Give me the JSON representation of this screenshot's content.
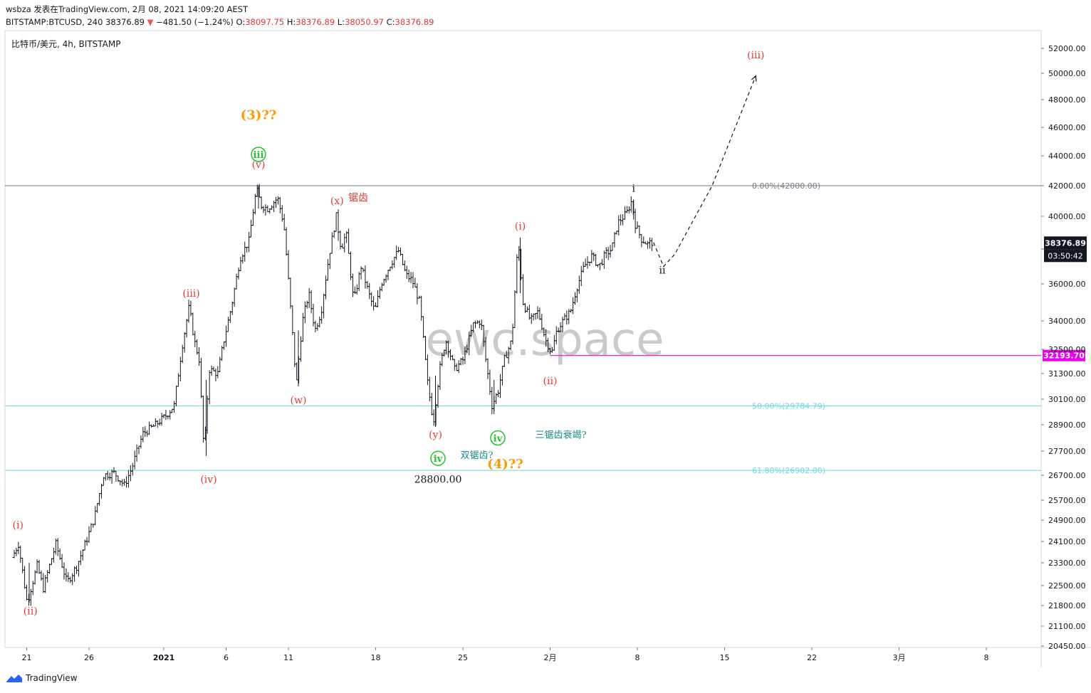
{
  "header": {
    "line1": "wsbza 发表在TradingView.com, 2月 08, 2021 14:09:20 AEST",
    "symbol_part": "BITSTAMP:BTCUSD, 240 38376.89",
    "change_arrow": "▼",
    "change": "−481.50 (−1.24%)",
    "o_label": "O:",
    "o_value": "38097.75",
    "h_label": "H:",
    "h_value": "38376.89",
    "l_label": "L:",
    "l_value": "38050.97",
    "c_label": "C:",
    "c_value": "38376.89"
  },
  "pane_title": "比特币/美元, 4h, BITSTAMP",
  "watermark": "ewc.space",
  "footer": {
    "brand": "TradingView"
  },
  "colors": {
    "candle": "#131722",
    "wave_red": "#e53935",
    "wave_orange": "#ff9800",
    "wave_green": "#22c32e",
    "fib_gray": "#787b86",
    "fib_cyan": "#6fd6e6",
    "magenta": "#ee00ee",
    "price_badge": "#131722"
  },
  "chart_data": {
    "type": "candlestick",
    "symbol": "BITSTAMP:BTCUSD",
    "interval": "4h",
    "y_ticks": [
      "52000.00",
      "50000.00",
      "48000.00",
      "46000.00",
      "44000.00",
      "42000.00",
      "40000.00",
      "38000.00",
      "36000.00",
      "34000.00",
      "32500.00",
      "31300.00",
      "30100.00",
      "28900.00",
      "27700.00",
      "26700.00",
      "25700.00",
      "24900.00",
      "24100.00",
      "23300.00",
      "22500.00",
      "21800.00",
      "21100.00",
      "20450.00"
    ],
    "x_ticks": [
      {
        "label": "21",
        "day": 21
      },
      {
        "label": "26",
        "day": 26
      },
      {
        "label": "2021",
        "day": 32
      },
      {
        "label": "6",
        "day": 37
      },
      {
        "label": "11",
        "day": 42
      },
      {
        "label": "18",
        "day": 49
      },
      {
        "label": "25",
        "day": 56
      },
      {
        "label": "2月",
        "day": 63
      },
      {
        "label": "8",
        "day": 70
      },
      {
        "label": "15",
        "day": 77
      },
      {
        "label": "22",
        "day": 84
      },
      {
        "label": "3月",
        "day": 91
      },
      {
        "label": "8",
        "day": 98
      }
    ],
    "path_points": [
      [
        20.0,
        23500
      ],
      [
        20.5,
        24000
      ],
      [
        21.2,
        21900
      ],
      [
        22.0,
        23200
      ],
      [
        22.5,
        22400
      ],
      [
        23.5,
        24000
      ],
      [
        24.4,
        22600
      ],
      [
        25.2,
        23200
      ],
      [
        26.0,
        24200
      ],
      [
        26.6,
        25000
      ],
      [
        27.3,
        26700
      ],
      [
        28.2,
        26800
      ],
      [
        29.0,
        26300
      ],
      [
        29.6,
        27000
      ],
      [
        30.5,
        28500
      ],
      [
        31.5,
        28900
      ],
      [
        32.3,
        29300
      ],
      [
        33.0,
        29800
      ],
      [
        33.6,
        32500
      ],
      [
        34.2,
        34800
      ],
      [
        34.6,
        33000
      ],
      [
        35.0,
        32000
      ],
      [
        35.4,
        27500
      ],
      [
        35.8,
        31500
      ],
      [
        36.5,
        31300
      ],
      [
        37.0,
        33000
      ],
      [
        37.6,
        34800
      ],
      [
        38.3,
        37500
      ],
      [
        39.0,
        38500
      ],
      [
        39.6,
        41800
      ],
      [
        40.0,
        40700
      ],
      [
        40.5,
        40500
      ],
      [
        41.3,
        41200
      ],
      [
        41.8,
        39500
      ],
      [
        42.3,
        35000
      ],
      [
        42.8,
        30700
      ],
      [
        43.3,
        34000
      ],
      [
        43.8,
        35500
      ],
      [
        44.3,
        33500
      ],
      [
        44.8,
        34500
      ],
      [
        45.4,
        37500
      ],
      [
        46.0,
        40000
      ],
      [
        46.4,
        38000
      ],
      [
        46.8,
        39000
      ],
      [
        47.4,
        35000
      ],
      [
        48.0,
        37000
      ],
      [
        48.6,
        35500
      ],
      [
        49.1,
        34500
      ],
      [
        49.6,
        36000
      ],
      [
        50.4,
        37200
      ],
      [
        51.0,
        37900
      ],
      [
        51.6,
        36500
      ],
      [
        52.1,
        36200
      ],
      [
        52.7,
        35000
      ],
      [
        53.3,
        31000
      ],
      [
        53.8,
        29000
      ],
      [
        54.3,
        31500
      ],
      [
        54.8,
        33000
      ],
      [
        55.5,
        31500
      ],
      [
        56.2,
        32000
      ],
      [
        57.0,
        33800
      ],
      [
        57.6,
        34000
      ],
      [
        58.0,
        32000
      ],
      [
        58.5,
        29800
      ],
      [
        59.0,
        30500
      ],
      [
        59.5,
        32000
      ],
      [
        60.1,
        33000
      ],
      [
        60.6,
        38500
      ],
      [
        61.0,
        35000
      ],
      [
        61.6,
        34000
      ],
      [
        62.2,
        34500
      ],
      [
        62.8,
        33000
      ],
      [
        63.3,
        32300
      ],
      [
        63.7,
        33500
      ],
      [
        64.2,
        34000
      ],
      [
        64.8,
        34500
      ],
      [
        65.3,
        35800
      ],
      [
        65.9,
        37000
      ],
      [
        66.5,
        37600
      ],
      [
        67.1,
        37000
      ],
      [
        67.6,
        37700
      ],
      [
        68.1,
        38000
      ],
      [
        68.6,
        39600
      ],
      [
        69.3,
        40200
      ],
      [
        69.7,
        41000
      ],
      [
        70.0,
        39500
      ],
      [
        70.5,
        38600
      ],
      [
        71.0,
        38300
      ],
      [
        71.3,
        38400
      ]
    ],
    "projection": [
      [
        71.3,
        38400
      ],
      [
        72.1,
        37000
      ],
      [
        73.0,
        37700
      ],
      [
        76.0,
        42000
      ],
      [
        79.5,
        49800
      ]
    ],
    "horizontal_levels": [
      {
        "label": "0.00%(42000.00)",
        "price": 42000,
        "style": "gray"
      },
      {
        "label": "50.00%(29784.79)",
        "price": 29784.79,
        "style": "cyan"
      },
      {
        "label": "61.80%(26902.00)",
        "price": 26902,
        "style": "cyan"
      }
    ],
    "magenta_level": {
      "price": 32193.7,
      "label": "32193.70",
      "from_day": 63.0
    },
    "last_price": {
      "value": "38376.89",
      "countdown": "03:50:42",
      "price": 38376.89
    },
    "wave_labels": [
      {
        "text": "(i)",
        "day": 20.3,
        "price": 24600,
        "color": "red"
      },
      {
        "text": "(ii)",
        "day": 21.3,
        "price": 21500,
        "color": "red"
      },
      {
        "text": "(iii)",
        "day": 34.2,
        "price": 35300,
        "color": "red"
      },
      {
        "text": "(iv)",
        "day": 35.6,
        "price": 26400,
        "color": "red"
      },
      {
        "text": "(v)",
        "day": 39.6,
        "price": 43200,
        "color": "red"
      },
      {
        "text": "(w)",
        "day": 42.8,
        "price": 29900,
        "color": "red"
      },
      {
        "text": "(x)",
        "day": 45.9,
        "price": 40800,
        "color": "red"
      },
      {
        "text": "锯齿",
        "day": 47.6,
        "price": 41000,
        "color": "red"
      },
      {
        "text": "(y)",
        "day": 53.8,
        "price": 28300,
        "color": "red"
      },
      {
        "text": "(i)",
        "day": 60.6,
        "price": 39200,
        "color": "red"
      },
      {
        "text": "(ii)",
        "day": 63.0,
        "price": 30800,
        "color": "red"
      },
      {
        "text": "(3)??",
        "day": 39.6,
        "price": 46600,
        "color": "orange"
      },
      {
        "text": "(4)??",
        "day": 59.4,
        "price": 27000,
        "color": "orange"
      },
      {
        "text": "i",
        "day": 69.7,
        "price": 41600,
        "color": "dark"
      },
      {
        "text": "ii",
        "day": 72.0,
        "price": 36600,
        "color": "dark"
      },
      {
        "text": "(iii)",
        "day": 79.5,
        "price": 51200,
        "color": "red"
      },
      {
        "text": "双锯齿?",
        "day": 55.8,
        "price": 27400,
        "color": "teal"
      },
      {
        "text": "三锯齿衰竭?",
        "day": 61.8,
        "price": 28300,
        "color": "teal"
      },
      {
        "text": "28800.00",
        "day": 54.0,
        "price": 26400,
        "color": "dark"
      }
    ],
    "circled_labels": [
      {
        "text": "iii",
        "day": 39.6,
        "price": 44100
      },
      {
        "text": "iv",
        "day": 54.0,
        "price": 27400
      },
      {
        "text": "iv",
        "day": 58.8,
        "price": 28300
      }
    ]
  }
}
